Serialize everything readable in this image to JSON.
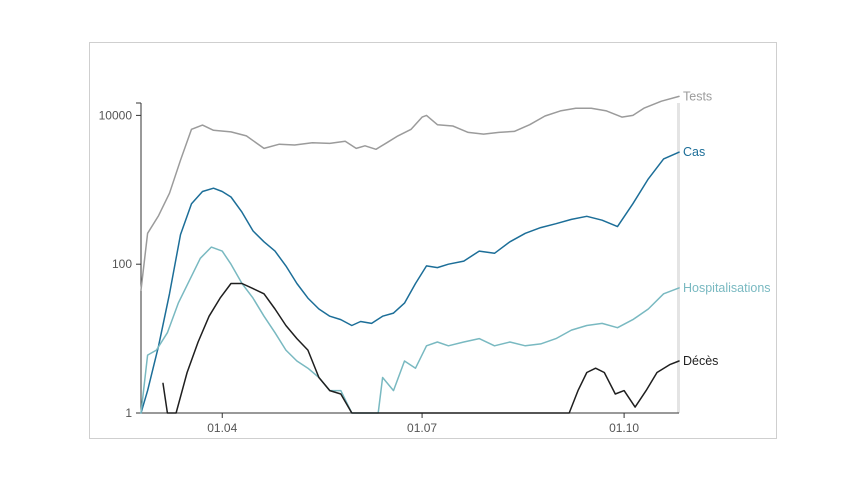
{
  "chart_data": {
    "type": "line",
    "title": "",
    "xlabel": "",
    "ylabel": "",
    "yscale": "log",
    "ylim": [
      1,
      20000
    ],
    "y_ticks": [
      {
        "value": 10000,
        "label": "10000"
      },
      {
        "value": 100,
        "label": "100"
      },
      {
        "value": 1,
        "label": "1"
      }
    ],
    "x_domain": [
      "2020-02-24",
      "2020-10-26"
    ],
    "x_ticks": [
      {
        "date": "2020-04-01",
        "label": "01.04"
      },
      {
        "date": "2020-07-01",
        "label": "01.07"
      },
      {
        "date": "2020-10-01",
        "label": "01.10"
      }
    ],
    "series": [
      {
        "name": "Tests",
        "label": "Tests",
        "color": "#9b9b9b",
        "points": [
          [
            "2020-02-24",
            45
          ],
          [
            "2020-02-27",
            260
          ],
          [
            "2020-03-03",
            450
          ],
          [
            "2020-03-08",
            900
          ],
          [
            "2020-03-13",
            2500
          ],
          [
            "2020-03-18",
            6500
          ],
          [
            "2020-03-23",
            7400
          ],
          [
            "2020-03-28",
            6300
          ],
          [
            "2020-04-05",
            6000
          ],
          [
            "2020-04-12",
            5300
          ],
          [
            "2020-04-20",
            3600
          ],
          [
            "2020-04-27",
            4100
          ],
          [
            "2020-05-04",
            4000
          ],
          [
            "2020-05-12",
            4300
          ],
          [
            "2020-05-20",
            4200
          ],
          [
            "2020-05-27",
            4500
          ],
          [
            "2020-06-01",
            3600
          ],
          [
            "2020-06-05",
            3900
          ],
          [
            "2020-06-10",
            3500
          ],
          [
            "2020-06-15",
            4300
          ],
          [
            "2020-06-20",
            5300
          ],
          [
            "2020-06-26",
            6500
          ],
          [
            "2020-07-01",
            9500
          ],
          [
            "2020-07-03",
            10000
          ],
          [
            "2020-07-08",
            7500
          ],
          [
            "2020-07-15",
            7200
          ],
          [
            "2020-07-22",
            5900
          ],
          [
            "2020-07-29",
            5600
          ],
          [
            "2020-08-05",
            5900
          ],
          [
            "2020-08-12",
            6100
          ],
          [
            "2020-08-19",
            7500
          ],
          [
            "2020-08-26",
            9800
          ],
          [
            "2020-09-02",
            11500
          ],
          [
            "2020-09-09",
            12500
          ],
          [
            "2020-09-16",
            12500
          ],
          [
            "2020-09-23",
            11500
          ],
          [
            "2020-09-30",
            9500
          ],
          [
            "2020-10-05",
            10000
          ],
          [
            "2020-10-10",
            12500
          ],
          [
            "2020-10-18",
            15500
          ],
          [
            "2020-10-26",
            18000
          ]
        ]
      },
      {
        "name": "Cas",
        "label": "Cas",
        "color": "#1c6e98",
        "points": [
          [
            "2020-02-24",
            1
          ],
          [
            "2020-02-27",
            2
          ],
          [
            "2020-03-03",
            8
          ],
          [
            "2020-03-08",
            40
          ],
          [
            "2020-03-13",
            250
          ],
          [
            "2020-03-18",
            650
          ],
          [
            "2020-03-23",
            950
          ],
          [
            "2020-03-28",
            1050
          ],
          [
            "2020-04-01",
            950
          ],
          [
            "2020-04-05",
            800
          ],
          [
            "2020-04-10",
            500
          ],
          [
            "2020-04-15",
            280
          ],
          [
            "2020-04-20",
            200
          ],
          [
            "2020-04-25",
            150
          ],
          [
            "2020-04-30",
            95
          ],
          [
            "2020-05-05",
            55
          ],
          [
            "2020-05-10",
            35
          ],
          [
            "2020-05-15",
            25
          ],
          [
            "2020-05-20",
            20
          ],
          [
            "2020-05-25",
            18
          ],
          [
            "2020-05-30",
            15
          ],
          [
            "2020-06-03",
            17
          ],
          [
            "2020-06-08",
            16
          ],
          [
            "2020-06-13",
            20
          ],
          [
            "2020-06-18",
            22
          ],
          [
            "2020-06-23",
            30
          ],
          [
            "2020-06-28",
            55
          ],
          [
            "2020-07-03",
            95
          ],
          [
            "2020-07-08",
            90
          ],
          [
            "2020-07-13",
            100
          ],
          [
            "2020-07-20",
            110
          ],
          [
            "2020-07-27",
            150
          ],
          [
            "2020-08-03",
            140
          ],
          [
            "2020-08-10",
            200
          ],
          [
            "2020-08-17",
            260
          ],
          [
            "2020-08-24",
            310
          ],
          [
            "2020-08-31",
            350
          ],
          [
            "2020-09-07",
            400
          ],
          [
            "2020-09-14",
            440
          ],
          [
            "2020-09-21",
            390
          ],
          [
            "2020-09-28",
            320
          ],
          [
            "2020-10-05",
            650
          ],
          [
            "2020-10-12",
            1400
          ],
          [
            "2020-10-19",
            2600
          ],
          [
            "2020-10-26",
            3200
          ]
        ]
      },
      {
        "name": "Hospitalisations",
        "label": "Hospitalisations",
        "color": "#79b9c1",
        "points": [
          [
            "2020-02-24",
            1
          ],
          [
            "2020-02-27",
            6
          ],
          [
            "2020-03-02",
            7
          ],
          [
            "2020-03-07",
            12
          ],
          [
            "2020-03-12",
            30
          ],
          [
            "2020-03-17",
            60
          ],
          [
            "2020-03-22",
            120
          ],
          [
            "2020-03-27",
            170
          ],
          [
            "2020-04-01",
            150
          ],
          [
            "2020-04-05",
            100
          ],
          [
            "2020-04-10",
            55
          ],
          [
            "2020-04-15",
            35
          ],
          [
            "2020-04-20",
            20
          ],
          [
            "2020-04-25",
            12
          ],
          [
            "2020-04-30",
            7
          ],
          [
            "2020-05-05",
            5
          ],
          [
            "2020-05-10",
            4
          ],
          [
            "2020-05-15",
            3
          ],
          [
            "2020-05-20",
            2
          ],
          [
            "2020-05-25",
            2
          ],
          [
            "2020-05-30",
            1
          ],
          [
            "2020-06-06",
            1
          ],
          [
            "2020-06-11",
            1
          ],
          [
            "2020-06-13",
            3
          ],
          [
            "2020-06-18",
            2
          ],
          [
            "2020-06-23",
            5
          ],
          [
            "2020-06-28",
            4
          ],
          [
            "2020-07-03",
            8
          ],
          [
            "2020-07-08",
            9
          ],
          [
            "2020-07-13",
            8
          ],
          [
            "2020-07-20",
            9
          ],
          [
            "2020-07-27",
            10
          ],
          [
            "2020-08-03",
            8
          ],
          [
            "2020-08-10",
            9
          ],
          [
            "2020-08-17",
            8
          ],
          [
            "2020-08-24",
            8.5
          ],
          [
            "2020-08-31",
            10
          ],
          [
            "2020-09-07",
            13
          ],
          [
            "2020-09-14",
            15
          ],
          [
            "2020-09-21",
            16
          ],
          [
            "2020-09-28",
            14
          ],
          [
            "2020-10-05",
            18
          ],
          [
            "2020-10-12",
            25
          ],
          [
            "2020-10-19",
            40
          ],
          [
            "2020-10-26",
            48
          ]
        ]
      },
      {
        "name": "Décès",
        "label": "Décès",
        "color": "#1f1f1f",
        "points": [
          [
            "2020-03-05",
            2.5
          ],
          [
            "2020-03-07",
            1
          ],
          [
            "2020-03-11",
            1
          ],
          [
            "2020-03-16",
            3.5
          ],
          [
            "2020-03-21",
            9
          ],
          [
            "2020-03-26",
            20
          ],
          [
            "2020-03-31",
            35
          ],
          [
            "2020-04-05",
            55
          ],
          [
            "2020-04-10",
            55
          ],
          [
            "2020-04-15",
            47
          ],
          [
            "2020-04-20",
            40
          ],
          [
            "2020-04-25",
            25
          ],
          [
            "2020-04-30",
            15
          ],
          [
            "2020-05-05",
            10
          ],
          [
            "2020-05-10",
            7
          ],
          [
            "2020-05-15",
            3
          ],
          [
            "2020-05-20",
            2
          ],
          [
            "2020-05-25",
            1.8
          ],
          [
            "2020-05-30",
            1
          ],
          [
            "2020-06-10",
            1
          ],
          [
            "2020-07-01",
            1
          ],
          [
            "2020-08-01",
            1
          ],
          [
            "2020-09-01",
            1
          ],
          [
            "2020-09-06",
            1
          ],
          [
            "2020-09-10",
            2
          ],
          [
            "2020-09-14",
            3.5
          ],
          [
            "2020-09-18",
            4
          ],
          [
            "2020-09-22",
            3.5
          ],
          [
            "2020-09-27",
            1.8
          ],
          [
            "2020-10-01",
            2
          ],
          [
            "2020-10-06",
            1.2
          ],
          [
            "2020-10-11",
            2
          ],
          [
            "2020-10-16",
            3.5
          ],
          [
            "2020-10-22",
            4.5
          ],
          [
            "2020-10-26",
            5
          ]
        ]
      }
    ]
  }
}
